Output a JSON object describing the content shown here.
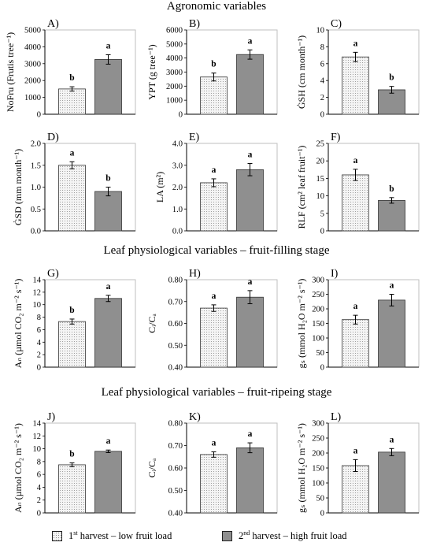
{
  "titles": {
    "agronomic": "Agronomic variables",
    "filling": "Leaf physiological variables – fruit-filling stage",
    "ripening": "Leaf physiological variables – fruit-ripeing stage"
  },
  "legend": {
    "first_sup": "st",
    "first_pre": "1",
    "first_text": " harvest – low fruit load",
    "second_pre": "2",
    "second_sup": "nd",
    "second_text": " harvest – high fruit load"
  },
  "colors": {
    "first_fill": "#f4f4f4",
    "second_fill": "#8f8f8f",
    "axis": "#000000",
    "grid": "#d9d9d9"
  },
  "chart_data": [
    {
      "id": "A",
      "panel_label": "A)",
      "type": "bar",
      "categories": [
        "1st harvest",
        "2nd harvest"
      ],
      "values": [
        1500,
        3250
      ],
      "errors": [
        130,
        280
      ],
      "letters": [
        "b",
        "a"
      ],
      "ylabel": "NoFru (Frutis tree⁻¹)",
      "ylim": [
        0,
        5000
      ],
      "yticks": [
        0,
        1000,
        2000,
        3000,
        4000,
        5000
      ],
      "tick_labels": [
        "0",
        "1000",
        "2000",
        "3000",
        "4000",
        "5000"
      ]
    },
    {
      "id": "B",
      "panel_label": "B)",
      "type": "bar",
      "categories": [
        "1st harvest",
        "2nd harvest"
      ],
      "values": [
        2650,
        4250
      ],
      "errors": [
        280,
        330
      ],
      "letters": [
        "b",
        "a"
      ],
      "ylabel": "YPT (g tree⁻¹)",
      "ylim": [
        0,
        6000
      ],
      "yticks": [
        0,
        1000,
        2000,
        3000,
        4000,
        5000,
        6000
      ],
      "tick_labels": [
        "0",
        "1000",
        "2000",
        "3000",
        "4000",
        "5000",
        "6000"
      ]
    },
    {
      "id": "C",
      "panel_label": "C)",
      "type": "bar",
      "categories": [
        "1st harvest",
        "2nd harvest"
      ],
      "values": [
        6.8,
        2.9
      ],
      "errors": [
        0.55,
        0.4
      ],
      "letters": [
        "a",
        "b"
      ],
      "ylabel": "ĠSH (cm month⁻¹)",
      "ylim": [
        0,
        10
      ],
      "yticks": [
        0,
        2,
        4,
        6,
        8,
        10
      ],
      "tick_labels": [
        "0",
        "2",
        "4",
        "6",
        "8",
        "10"
      ]
    },
    {
      "id": "D",
      "panel_label": "D)",
      "type": "bar",
      "categories": [
        "1st harvest",
        "2nd harvest"
      ],
      "values": [
        1.5,
        0.9
      ],
      "errors": [
        0.08,
        0.1
      ],
      "letters": [
        "a",
        "b"
      ],
      "ylabel": "ĠSD (mm month⁻¹)",
      "ylim": [
        0,
        2
      ],
      "yticks": [
        0,
        0.5,
        1,
        1.5,
        2
      ],
      "tick_labels": [
        "0.0",
        "0.5",
        "1.0",
        "1.5",
        "2.0"
      ]
    },
    {
      "id": "E",
      "panel_label": "E)",
      "type": "bar",
      "categories": [
        "1st harvest",
        "2nd harvest"
      ],
      "values": [
        2.2,
        2.8
      ],
      "errors": [
        0.18,
        0.28
      ],
      "letters": [
        "a",
        "a"
      ],
      "ylabel": "LA (m²)",
      "ylim": [
        0,
        4
      ],
      "yticks": [
        0,
        1,
        2,
        3,
        4
      ],
      "tick_labels": [
        "0.0",
        "1.0",
        "2.0",
        "3.0",
        "4.0"
      ]
    },
    {
      "id": "F",
      "panel_label": "F)",
      "type": "bar",
      "categories": [
        "1st harvest",
        "2nd harvest"
      ],
      "values": [
        16,
        8.7
      ],
      "errors": [
        1.6,
        0.8
      ],
      "letters": [
        "a",
        "b"
      ],
      "ylabel": "RLF (cm² leaf fruit⁻¹)",
      "ylim": [
        0,
        25
      ],
      "yticks": [
        0,
        5,
        10,
        15,
        20,
        25
      ],
      "tick_labels": [
        "0",
        "5",
        "10",
        "15",
        "20",
        "25"
      ]
    },
    {
      "id": "G",
      "panel_label": "G)",
      "type": "bar",
      "categories": [
        "1st harvest",
        "2nd harvest"
      ],
      "values": [
        7.3,
        11
      ],
      "errors": [
        0.4,
        0.5
      ],
      "letters": [
        "b",
        "a"
      ],
      "ylabel": "Aₙ (µmol CO₂ m⁻² s⁻¹)",
      "ylim": [
        0,
        14
      ],
      "yticks": [
        0,
        2,
        4,
        6,
        8,
        10,
        12,
        14
      ],
      "tick_labels": [
        "0",
        "2",
        "4",
        "6",
        "8",
        "10",
        "12",
        "14"
      ]
    },
    {
      "id": "H",
      "panel_label": "H)",
      "type": "bar",
      "categories": [
        "1st harvest",
        "2nd harvest"
      ],
      "values": [
        0.67,
        0.72
      ],
      "errors": [
        0.015,
        0.03
      ],
      "letters": [
        "a",
        "a"
      ],
      "ylabel": "Cᵢ/Cₐ",
      "ylim": [
        0.4,
        0.8
      ],
      "yticks": [
        0.4,
        0.5,
        0.6,
        0.7,
        0.8
      ],
      "tick_labels": [
        "0.40",
        "0.50",
        "0.60",
        "0.70",
        "0.80"
      ]
    },
    {
      "id": "I",
      "panel_label": "I)",
      "type": "bar",
      "categories": [
        "1st harvest",
        "2nd harvest"
      ],
      "values": [
        163,
        230
      ],
      "errors": [
        15,
        20
      ],
      "letters": [
        "a",
        "a"
      ],
      "ylabel": "gₛ (mmol H₂O m⁻² s⁻¹)",
      "ylim": [
        0,
        300
      ],
      "yticks": [
        0,
        50,
        100,
        150,
        200,
        250,
        300
      ],
      "tick_labels": [
        "0",
        "50",
        "100",
        "150",
        "200",
        "250",
        "300"
      ]
    },
    {
      "id": "J",
      "panel_label": "J)",
      "type": "bar",
      "categories": [
        "1st harvest",
        "2nd harvest"
      ],
      "values": [
        7.5,
        9.6
      ],
      "errors": [
        0.3,
        0.2
      ],
      "letters": [
        "b",
        "a"
      ],
      "ylabel": "Aₙ (µmol CO₂ m⁻² s⁻¹)",
      "ylim": [
        0,
        14
      ],
      "yticks": [
        0,
        2,
        4,
        6,
        8,
        10,
        12,
        14
      ],
      "tick_labels": [
        "0",
        "2",
        "4",
        "6",
        "8",
        "10",
        "12",
        "14"
      ]
    },
    {
      "id": "K",
      "panel_label": "K)",
      "type": "bar",
      "categories": [
        "1st harvest",
        "2nd harvest"
      ],
      "values": [
        0.66,
        0.69
      ],
      "errors": [
        0.012,
        0.022
      ],
      "letters": [
        "a",
        "a"
      ],
      "ylabel": "Cᵢ/Cₐ",
      "ylim": [
        0.4,
        0.8
      ],
      "yticks": [
        0.4,
        0.5,
        0.6,
        0.7,
        0.8
      ],
      "tick_labels": [
        "0.40",
        "0.50",
        "0.60",
        "0.70",
        "0.80"
      ]
    },
    {
      "id": "L",
      "panel_label": "L)",
      "type": "bar",
      "categories": [
        "1st harvest",
        "2nd harvest"
      ],
      "values": [
        158,
        203
      ],
      "errors": [
        20,
        12
      ],
      "letters": [
        "a",
        "a"
      ],
      "ylabel": "gₛ (mmol H₂O m⁻² s⁻¹)",
      "ylim": [
        0,
        300
      ],
      "yticks": [
        0,
        50,
        100,
        150,
        200,
        250,
        300
      ],
      "tick_labels": [
        "0",
        "50",
        "100",
        "150",
        "200",
        "250",
        "300"
      ]
    }
  ]
}
